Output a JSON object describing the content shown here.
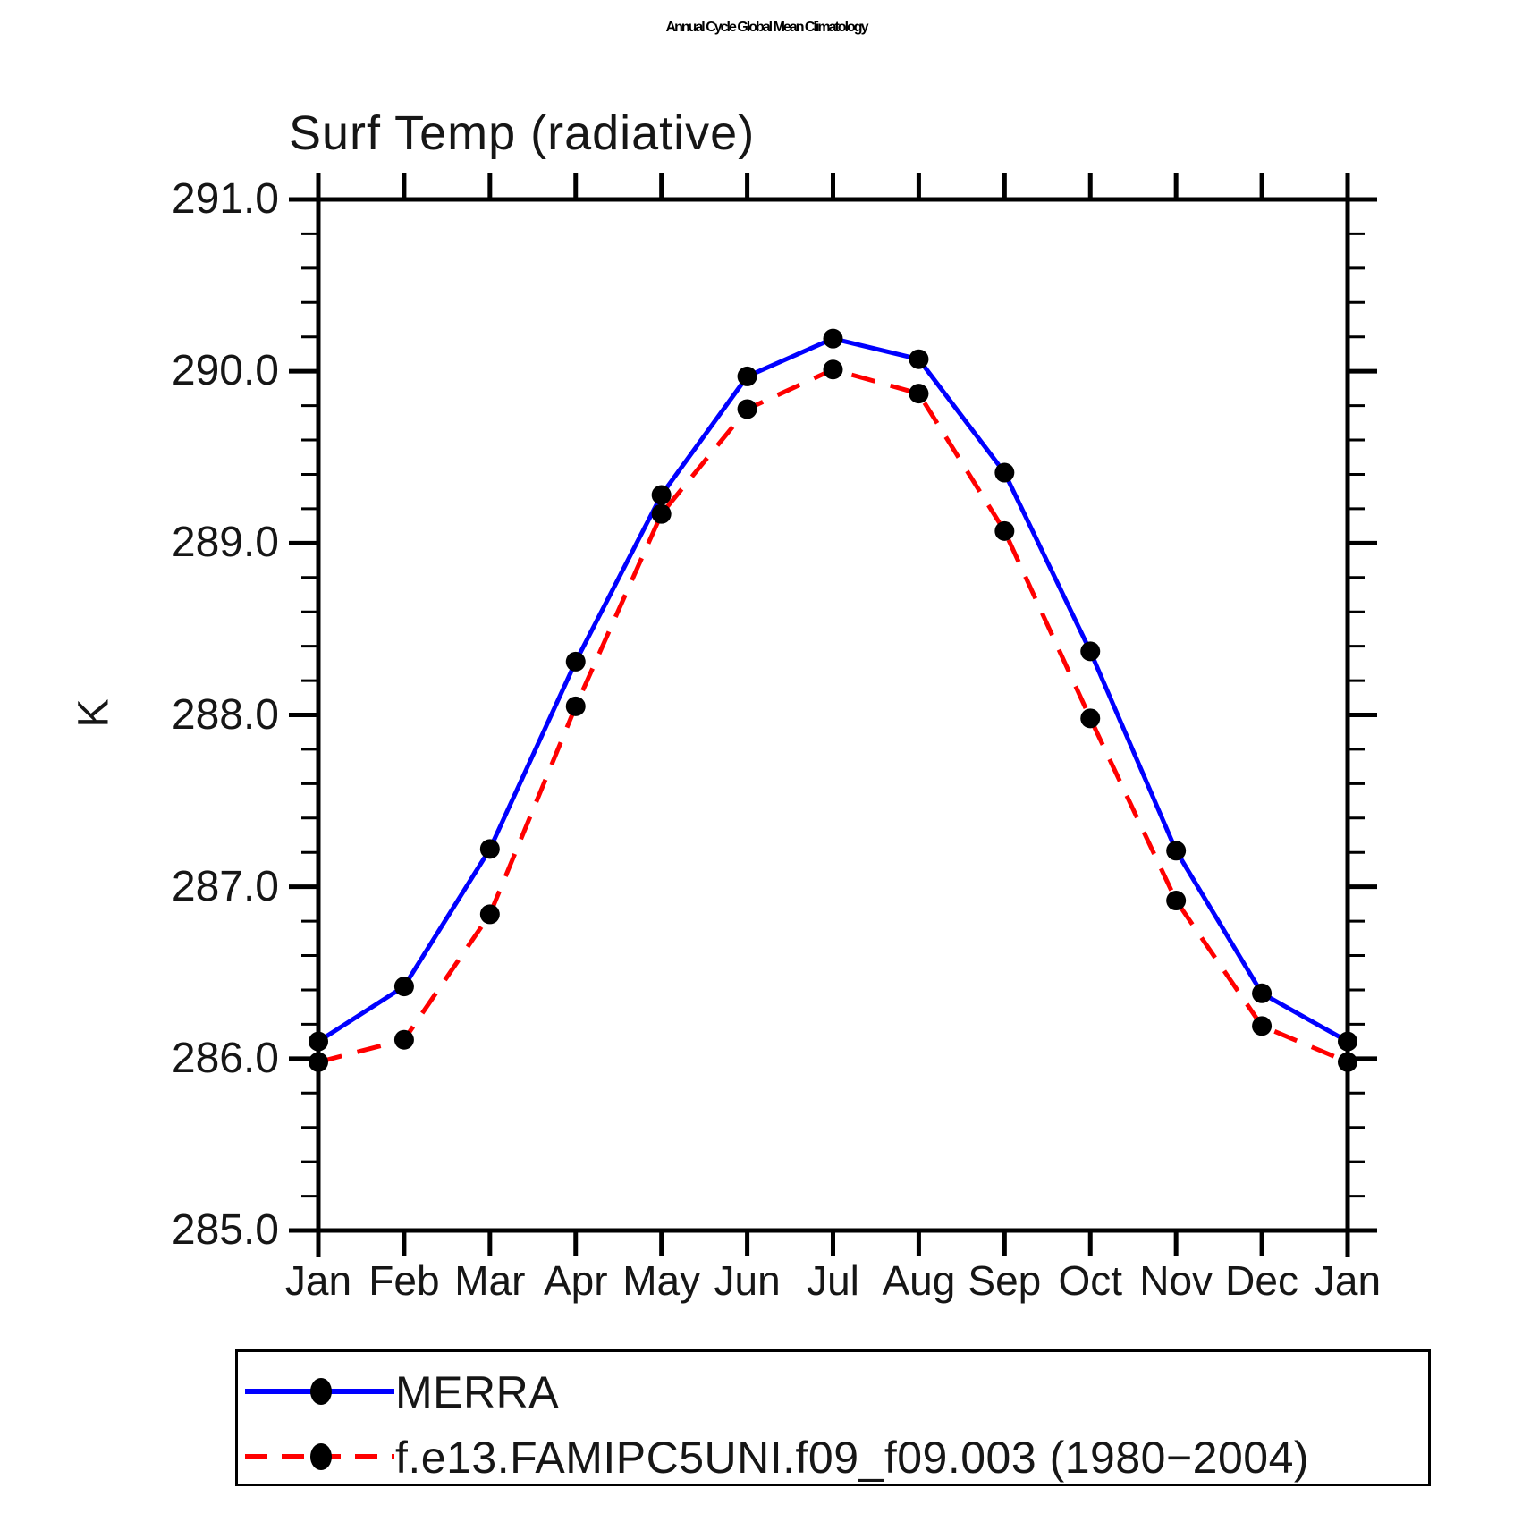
{
  "page": {
    "background": "#ffffff"
  },
  "chart_data": {
    "type": "line",
    "title": "Annual Cycle Global Mean Climatology",
    "subtitle": "Surf Temp (radiative)",
    "ylabel": "K",
    "xlabel": "",
    "x_categories": [
      "Jan",
      "Feb",
      "Mar",
      "Apr",
      "May",
      "Jun",
      "Jul",
      "Aug",
      "Sep",
      "Oct",
      "Nov",
      "Dec",
      "Jan"
    ],
    "ylim": [
      285.0,
      291.0
    ],
    "ytick_major_interval": 1.0,
    "ytick_minor_interval": 0.2,
    "ytick_labels": [
      "285.0",
      "286.0",
      "287.0",
      "288.0",
      "289.0",
      "290.0",
      "291.0"
    ],
    "grid": false,
    "legend_position": "bottom-left-box",
    "axis_color": "#000000",
    "marker_color": "#000000",
    "series": [
      {
        "name": "MERRA",
        "color": "#0000ff",
        "style": "solid",
        "marker": "circle",
        "values": [
          286.1,
          286.42,
          287.22,
          288.31,
          289.28,
          289.97,
          290.19,
          290.07,
          289.41,
          288.37,
          287.21,
          286.38,
          286.1
        ]
      },
      {
        "name": "f.e13.FAMIPC5UNI.f09_f09.003 (1980−2004)",
        "color": "#ff0000",
        "style": "dashed",
        "marker": "circle",
        "values": [
          285.98,
          286.11,
          286.84,
          288.05,
          289.17,
          289.78,
          290.01,
          289.87,
          289.07,
          287.98,
          286.92,
          286.19,
          285.98
        ]
      }
    ]
  }
}
